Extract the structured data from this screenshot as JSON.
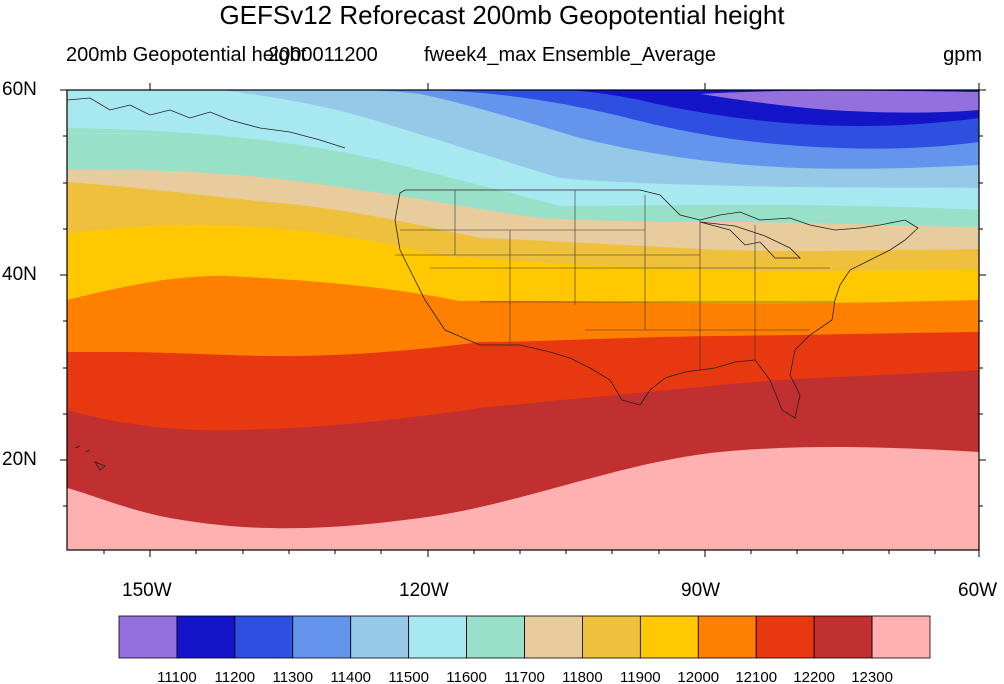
{
  "title": "GEFSv12 Reforecast 200mb Geopotential height",
  "subtitle": {
    "left": "200mb Geopotential height",
    "date": "2000011200",
    "run": "fweek4_max Ensemble_Average",
    "units": "gpm"
  },
  "axes": {
    "lat_labels": [
      "60N",
      "40N",
      "20N"
    ],
    "lon_labels": [
      "150W",
      "120W",
      "90W",
      "60W"
    ]
  },
  "map": {
    "type": "filled-contour",
    "projection": "cylindrical-equidistant",
    "lon_range": [
      -159,
      -60
    ],
    "lat_range": [
      10,
      60
    ],
    "region": "contiguous United States with state boundaries",
    "shading": "band fill colors from low (north) to high (south)"
  },
  "colorbar": {
    "colors": [
      "#9370DB",
      "#1414C8",
      "#2F4FE0",
      "#6495ED",
      "#96C8E8",
      "#A8E8F0",
      "#98E0C8",
      "#E8CC9E",
      "#EEC03C",
      "#FFC800",
      "#FF8000",
      "#E8380F",
      "#C03030",
      "#FFB0B0"
    ],
    "labels": [
      "11100",
      "11200",
      "11300",
      "11400",
      "11500",
      "11600",
      "11700",
      "11800",
      "11900",
      "12000",
      "12100",
      "12200",
      "12300"
    ]
  }
}
